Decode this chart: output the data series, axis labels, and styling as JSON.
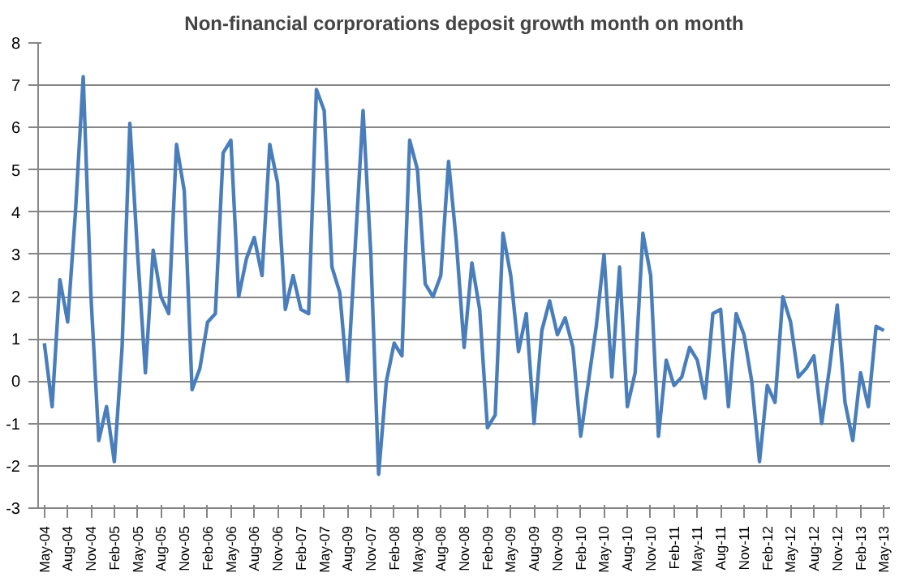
{
  "chart_data": {
    "type": "line",
    "title": "Non-financial corprorations deposit growth month on month",
    "categories": [
      "May-04",
      null,
      null,
      "Aug-04",
      null,
      null,
      "Nov-04",
      null,
      null,
      "Feb-05",
      null,
      null,
      "May-05",
      null,
      null,
      "Aug-05",
      null,
      null,
      "Nov-05",
      null,
      null,
      "Feb-06",
      null,
      null,
      "May-06",
      null,
      null,
      "Aug-06",
      null,
      null,
      "Nov-06",
      null,
      null,
      "Feb-07",
      null,
      null,
      "May-07",
      null,
      null,
      "Aug-09",
      null,
      null,
      "Nov-07",
      null,
      null,
      "Feb-08",
      null,
      null,
      "May-08",
      null,
      null,
      "Aug-08",
      null,
      null,
      "Nov-08",
      null,
      null,
      "Feb-09",
      null,
      null,
      "May-09",
      null,
      null,
      "Aug-09",
      null,
      null,
      "Nov-09",
      null,
      null,
      "Feb-10",
      null,
      null,
      "May-10",
      null,
      null,
      "Aug-10",
      null,
      null,
      "Nov-10",
      null,
      null,
      "Feb-11",
      null,
      null,
      "May-11",
      null,
      null,
      "Aug-11",
      null,
      null,
      "Nov-11",
      null,
      null,
      "Feb-12",
      null,
      null,
      "May-12",
      null,
      null,
      "Aug-12",
      null,
      null,
      "Nov-12",
      null,
      null,
      "Feb-13",
      null,
      null,
      "May-13"
    ],
    "series": [
      {
        "color": "#4a7ebb",
        "values": [
          0.9,
          -0.6,
          2.4,
          1.4,
          4.0,
          7.2,
          2.0,
          -1.4,
          -0.6,
          -1.9,
          0.8,
          6.1,
          3.0,
          0.2,
          3.1,
          2.0,
          1.6,
          5.6,
          4.5,
          -0.2,
          0.3,
          1.4,
          1.6,
          5.4,
          5.7,
          2.0,
          2.9,
          3.4,
          2.5,
          5.6,
          4.7,
          1.7,
          2.5,
          1.7,
          1.6,
          6.9,
          6.4,
          2.7,
          2.1,
          0.0,
          3.2,
          6.4,
          3.0,
          -2.2,
          0.0,
          0.9,
          0.6,
          5.7,
          5.0,
          2.3,
          2.0,
          2.5,
          5.2,
          3.3,
          0.8,
          2.8,
          1.7,
          -1.1,
          -0.8,
          3.5,
          2.5,
          0.7,
          1.6,
          -1.0,
          1.2,
          1.9,
          1.1,
          1.5,
          0.8,
          -1.3,
          0.0,
          1.3,
          3.0,
          0.1,
          2.7,
          -0.6,
          0.2,
          3.5,
          2.5,
          -1.3,
          0.5,
          -0.1,
          0.1,
          0.8,
          0.5,
          -0.4,
          1.6,
          1.7,
          -0.6,
          1.6,
          1.1,
          0.0,
          -1.9,
          -0.1,
          -0.5,
          2.0,
          1.4,
          0.1,
          0.3,
          0.6,
          -1.0,
          0.3,
          1.8,
          -0.5,
          -1.4,
          0.2,
          -0.6,
          1.3,
          1.2
        ]
      }
    ],
    "ylim": [
      -3,
      8
    ],
    "yticks": [
      -3,
      -2,
      -1,
      0,
      1,
      2,
      3,
      4,
      5,
      6,
      7,
      8
    ],
    "grid": "y",
    "marker": "none",
    "line_style": "solid"
  }
}
